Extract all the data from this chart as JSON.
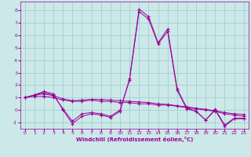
{
  "x": [
    0,
    1,
    2,
    3,
    4,
    5,
    6,
    7,
    8,
    9,
    10,
    11,
    12,
    13,
    14,
    15,
    16,
    17,
    18,
    19,
    20,
    21,
    22,
    23
  ],
  "line1": [
    1.0,
    1.2,
    1.5,
    1.3,
    0.0,
    -1.1,
    -0.5,
    -0.3,
    -0.4,
    -0.6,
    -0.1,
    2.5,
    8.1,
    7.5,
    5.4,
    6.5,
    1.7,
    0.2,
    -0.1,
    -0.8,
    0.0,
    -1.3,
    -0.7,
    -0.7
  ],
  "line2": [
    1.0,
    1.2,
    1.4,
    1.2,
    0.1,
    -0.9,
    -0.3,
    -0.2,
    -0.3,
    -0.5,
    0.0,
    2.4,
    7.9,
    7.3,
    5.3,
    6.3,
    1.6,
    0.1,
    -0.1,
    -0.8,
    0.05,
    -1.2,
    -0.65,
    -0.65
  ],
  "line3": [
    1.0,
    1.1,
    1.1,
    1.0,
    0.8,
    0.7,
    0.7,
    0.8,
    0.7,
    0.7,
    0.6,
    0.6,
    0.5,
    0.5,
    0.4,
    0.4,
    0.3,
    0.2,
    0.1,
    0.0,
    -0.1,
    -0.3,
    -0.4,
    -0.5
  ],
  "line4": [
    1.0,
    1.2,
    1.3,
    1.15,
    0.9,
    0.75,
    0.8,
    0.85,
    0.85,
    0.8,
    0.75,
    0.7,
    0.65,
    0.6,
    0.5,
    0.45,
    0.35,
    0.25,
    0.15,
    0.05,
    -0.05,
    -0.2,
    -0.3,
    -0.35
  ],
  "bg_color": "#cce8e8",
  "line_color": "#990099",
  "grid_color": "#99cccc",
  "xlabel": "Windchill (Refroidissement éolien,°C)",
  "xlabel_color": "#990099",
  "tick_color": "#990099",
  "ylim": [
    -1.5,
    8.7
  ],
  "xlim": [
    -0.5,
    23.5
  ],
  "yticks": [
    -1,
    0,
    1,
    2,
    3,
    4,
    5,
    6,
    7,
    8
  ],
  "xticks": [
    0,
    1,
    2,
    3,
    4,
    5,
    6,
    7,
    8,
    9,
    10,
    11,
    12,
    13,
    14,
    15,
    16,
    17,
    18,
    19,
    20,
    21,
    22,
    23
  ],
  "marker": "+",
  "linewidth": 0.7,
  "markersize": 3.5
}
